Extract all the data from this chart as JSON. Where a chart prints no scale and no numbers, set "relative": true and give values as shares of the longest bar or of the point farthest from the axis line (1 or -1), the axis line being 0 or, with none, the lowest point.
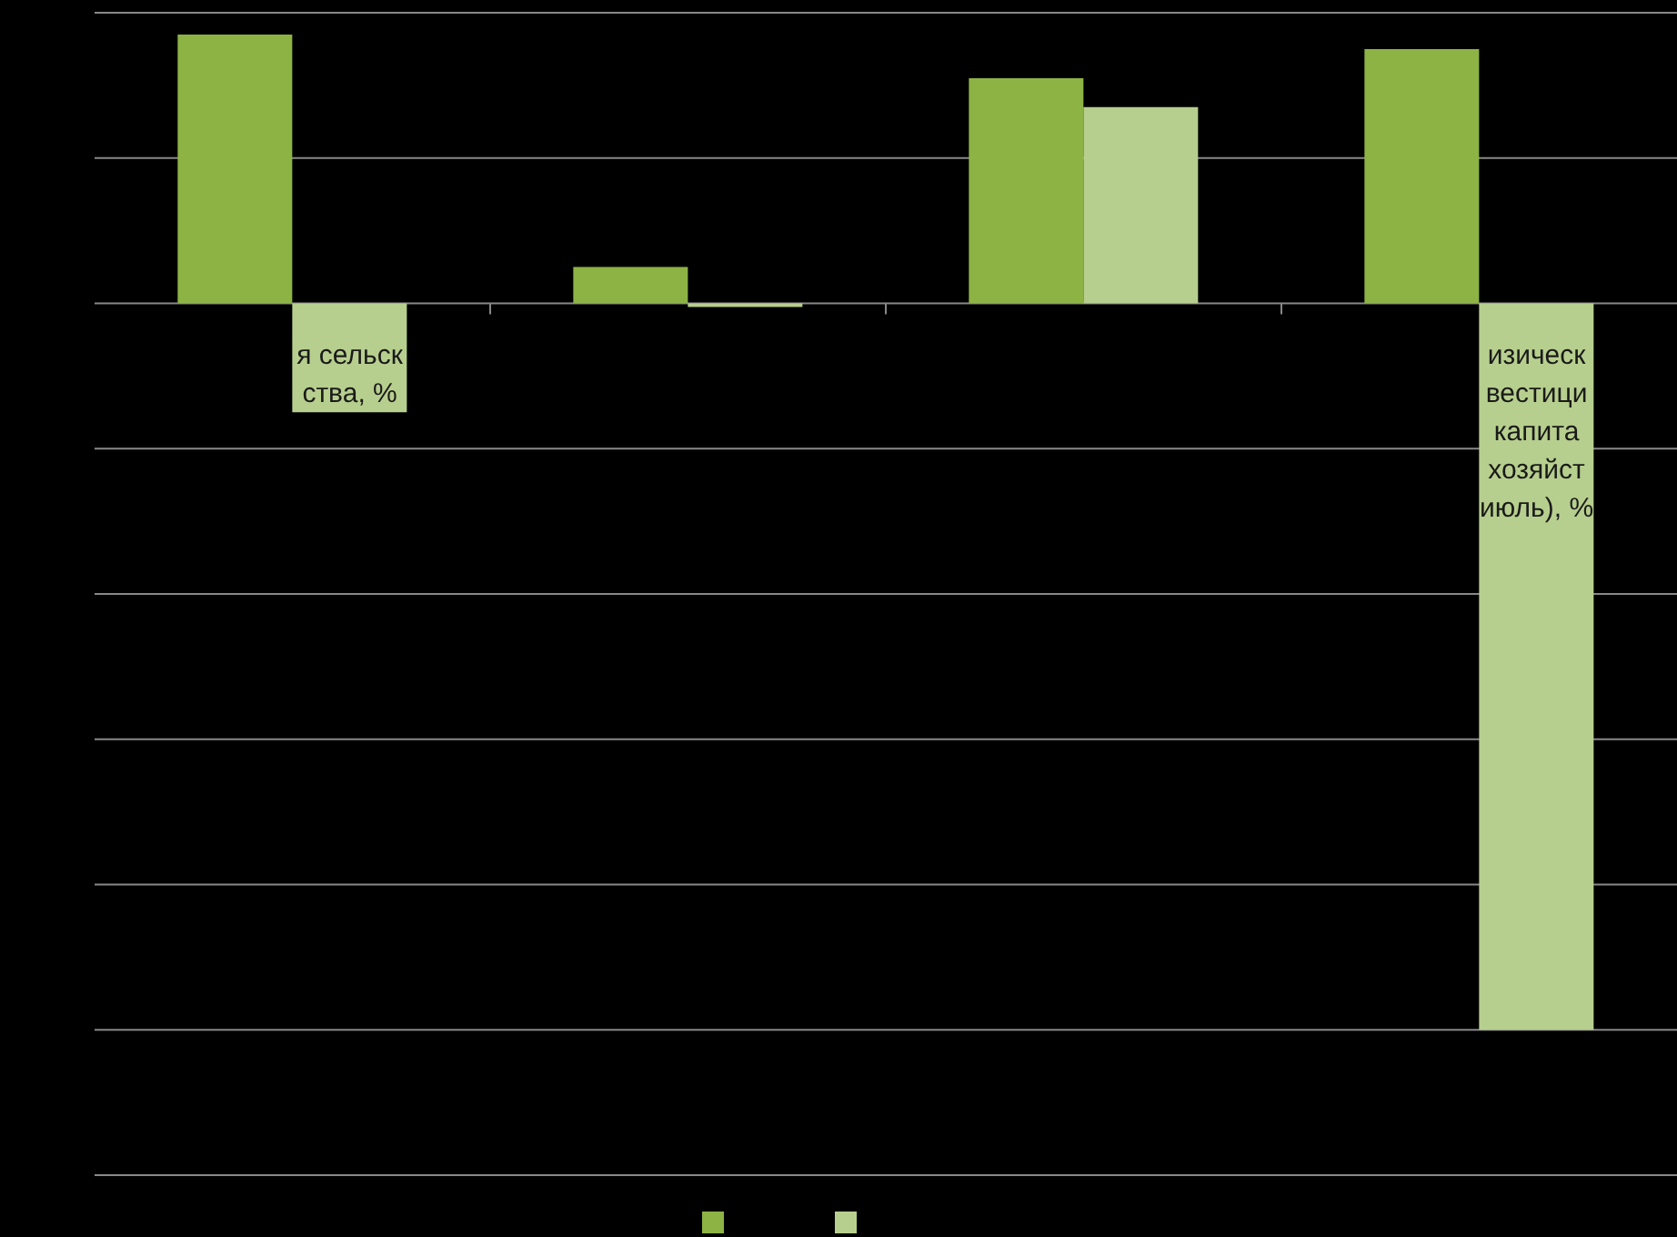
{
  "chart_data": {
    "type": "bar",
    "relative": true,
    "categories": [
      "я сельск\nства, %",
      null,
      null,
      "изическ\nвестици\nкапита\nхозяйст\nиюль), %"
    ],
    "series": [
      {
        "color": "#8db345",
        "values": [
          0.37,
          0.05,
          0.31,
          0.35
        ]
      },
      {
        "color": "#b7cf8e",
        "values": [
          -0.15,
          -0.005,
          0.27,
          -1
        ]
      }
    ],
    "grid": "y"
  }
}
